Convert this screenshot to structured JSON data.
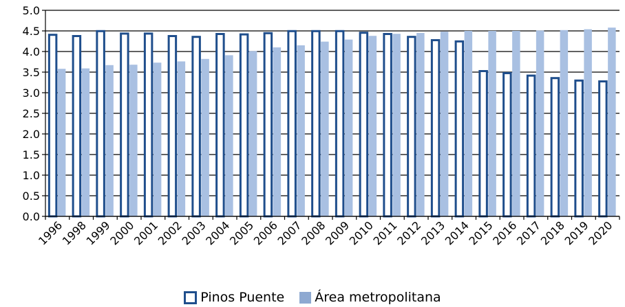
{
  "chart_data": {
    "type": "bar",
    "categories": [
      "1996",
      "1998",
      "1999",
      "2000",
      "2001",
      "2002",
      "2003",
      "2004",
      "2005",
      "2006",
      "2007",
      "2008",
      "2009",
      "2010",
      "2011",
      "2012",
      "2013",
      "2014",
      "2015",
      "2016",
      "2017",
      "2018",
      "2019",
      "2020"
    ],
    "series": [
      {
        "name": "Pinos Puente",
        "style": "outline",
        "color": "#1f4e8c",
        "values": [
          4.43,
          4.4,
          4.52,
          4.46,
          4.46,
          4.4,
          4.38,
          4.45,
          4.44,
          4.47,
          4.52,
          4.52,
          4.52,
          4.48,
          4.45,
          4.38,
          4.3,
          4.27,
          3.55,
          3.5,
          3.44,
          3.38,
          3.32,
          3.3
        ]
      },
      {
        "name": "Área metropolitana",
        "style": "filled",
        "color": "#a9c0e2",
        "values": [
          3.58,
          3.59,
          3.67,
          3.68,
          3.73,
          3.76,
          3.82,
          3.91,
          4.01,
          4.1,
          4.15,
          4.24,
          4.29,
          4.38,
          4.43,
          4.45,
          4.48,
          4.5,
          4.5,
          4.5,
          4.51,
          4.52,
          4.54,
          4.58
        ]
      }
    ],
    "yticks": [
      "0.0",
      "0.5",
      "1.0",
      "1.5",
      "2.0",
      "2.5",
      "3.0",
      "3.5",
      "4.0",
      "4.5",
      "5.0"
    ],
    "ylim": [
      0,
      5
    ],
    "grid": true,
    "legend_position": "bottom",
    "title": "",
    "xlabel": "",
    "ylabel": ""
  },
  "legend": {
    "items": [
      {
        "label": "Pinos Puente"
      },
      {
        "label": "Área metropolitana"
      }
    ]
  }
}
